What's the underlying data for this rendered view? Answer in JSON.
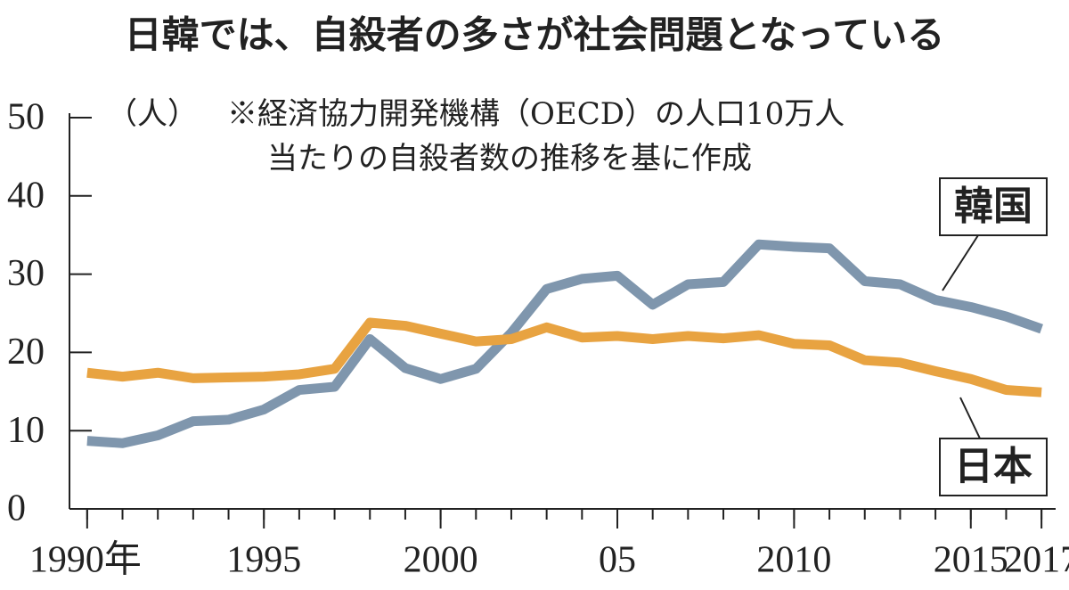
{
  "chart_data": {
    "type": "line",
    "title": "日韓では、自殺者の多さが社会問題となっている",
    "y_label": "（人）",
    "note": [
      "※経済協力開発機構（OECD）の人口10万人",
      "当たりの自殺者数の推移を基に作成"
    ],
    "x": [
      1990,
      1991,
      1992,
      1993,
      1994,
      1995,
      1996,
      1997,
      1998,
      1999,
      2000,
      2001,
      2002,
      2003,
      2004,
      2005,
      2006,
      2007,
      2008,
      2009,
      2010,
      2011,
      2012,
      2013,
      2014,
      2015,
      2016,
      2017
    ],
    "series": [
      {
        "name": "韓国",
        "color": "#7f96ad",
        "values": [
          8.7,
          8.4,
          9.4,
          11.2,
          11.4,
          12.7,
          15.2,
          15.6,
          21.7,
          18.0,
          16.6,
          17.9,
          22.5,
          28.1,
          29.4,
          29.8,
          26.1,
          28.7,
          29.0,
          33.8,
          33.5,
          33.3,
          29.1,
          28.7,
          26.7,
          25.8,
          24.6,
          23.0
        ]
      },
      {
        "name": "日本",
        "color": "#e8a341",
        "values": [
          17.4,
          16.9,
          17.4,
          16.7,
          16.8,
          16.9,
          17.2,
          17.9,
          23.8,
          23.4,
          22.4,
          21.4,
          21.7,
          23.2,
          21.9,
          22.1,
          21.7,
          22.1,
          21.8,
          22.2,
          21.1,
          20.9,
          19.0,
          18.7,
          17.6,
          16.6,
          15.2,
          14.9
        ]
      }
    ],
    "xlim": [
      1989.5,
      2017.4
    ],
    "ylim": [
      0,
      50
    ],
    "xticks": [
      {
        "value": 1990,
        "label": "1990年"
      },
      1995,
      2000,
      {
        "value": 2005,
        "label": "05"
      },
      2010,
      2015,
      2017
    ],
    "yticks": [
      0,
      10,
      20,
      30,
      40,
      50
    ],
    "grid": false
  }
}
